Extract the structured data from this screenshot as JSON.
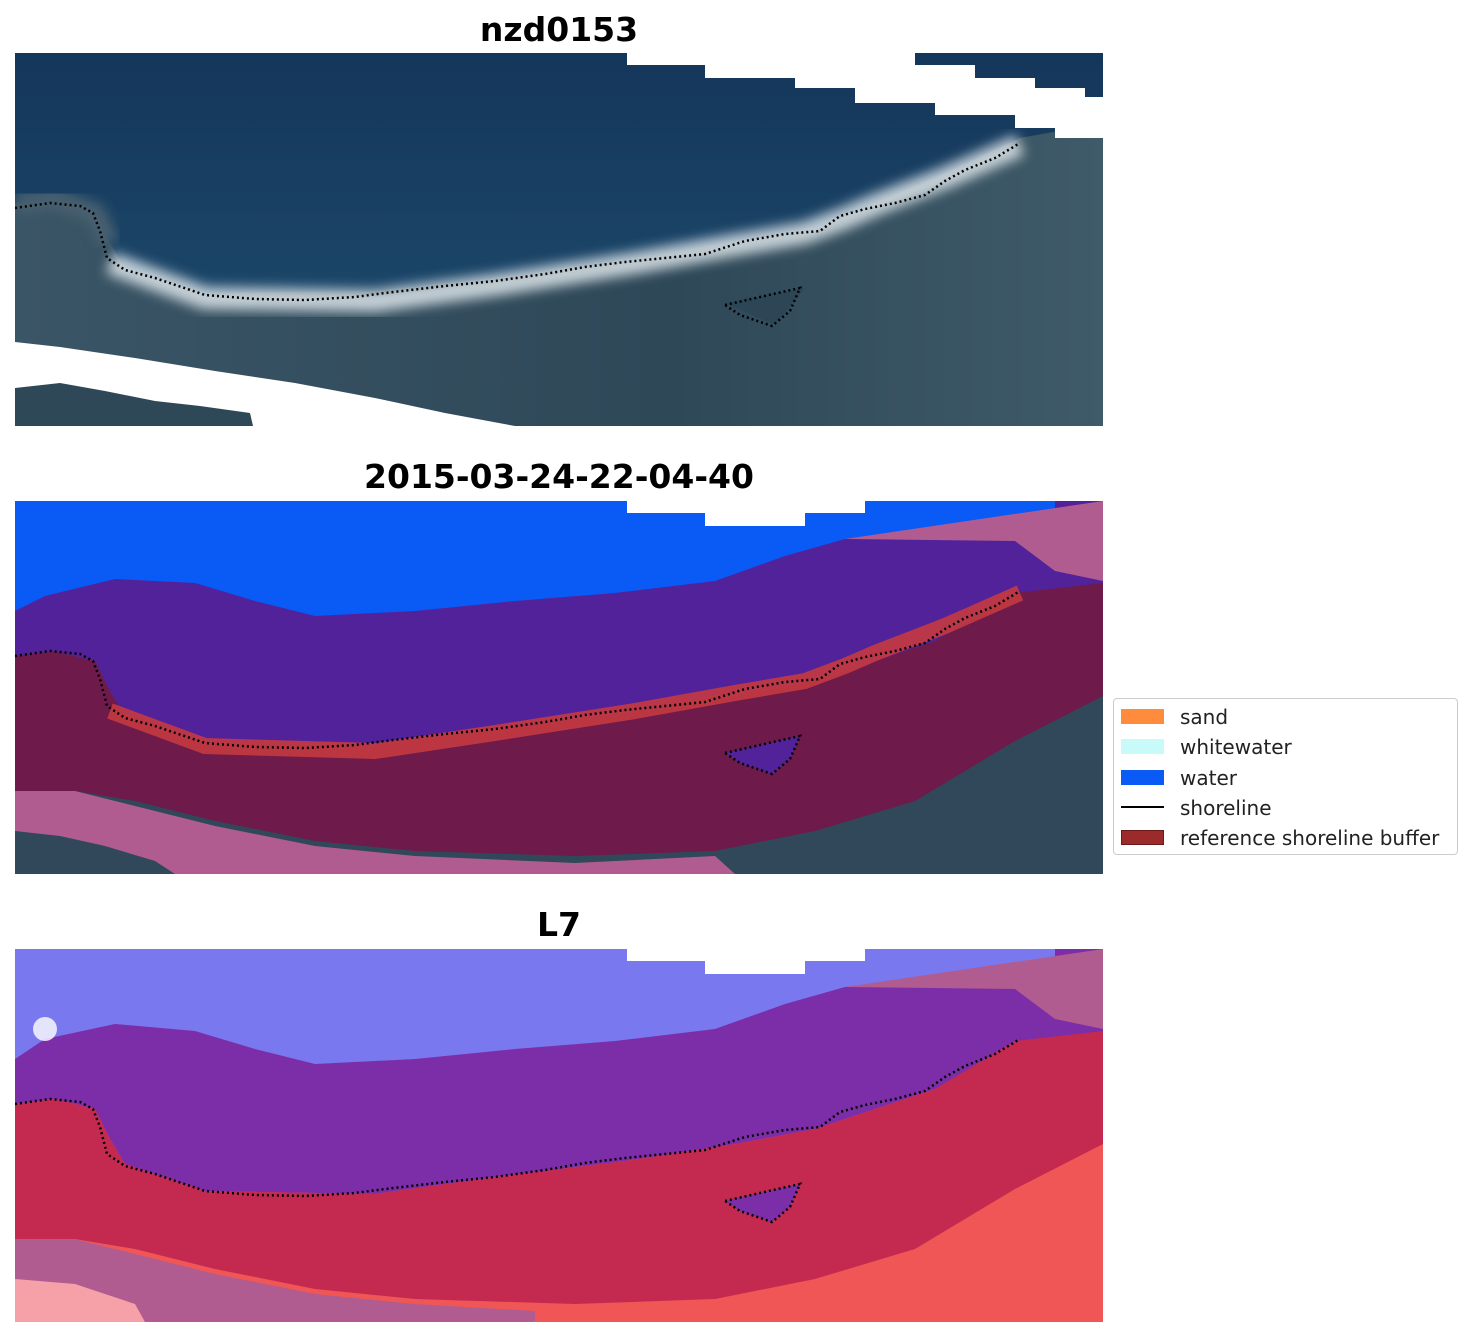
{
  "panels": [
    {
      "title": "nzd0153",
      "kind": "rgb"
    },
    {
      "title": "2015-03-24-22-04-40",
      "kind": "classified"
    },
    {
      "title": "L7",
      "kind": "index"
    }
  ],
  "legend": {
    "items": [
      {
        "label": "sand",
        "type": "patch",
        "color": "#ff8c3c"
      },
      {
        "label": "whitewater",
        "type": "patch",
        "color": "#c8fafa"
      },
      {
        "label": "water",
        "type": "patch",
        "color": "#0a5af5"
      },
      {
        "label": "shoreline",
        "type": "line",
        "color": "#000000"
      },
      {
        "label": "reference shoreline buffer",
        "type": "patch",
        "color": "#9b2b2b",
        "edge": "#6b1a1a"
      }
    ]
  },
  "colors": {
    "ocean_dark": "#173a5e",
    "land_dark": "#2f4a5a",
    "beach_bright": "#e6ecf0",
    "classified_water": "#0a5af5",
    "classified_purple": "#52229a",
    "classified_buffer": "#6e1a4a",
    "classified_pink": "#b05c90",
    "classified_red": "#c43a40",
    "index_blue": "#7a78ee",
    "index_purple": "#7c2ea8",
    "index_red": "#c42a50",
    "index_bright_red": "#f05656"
  }
}
